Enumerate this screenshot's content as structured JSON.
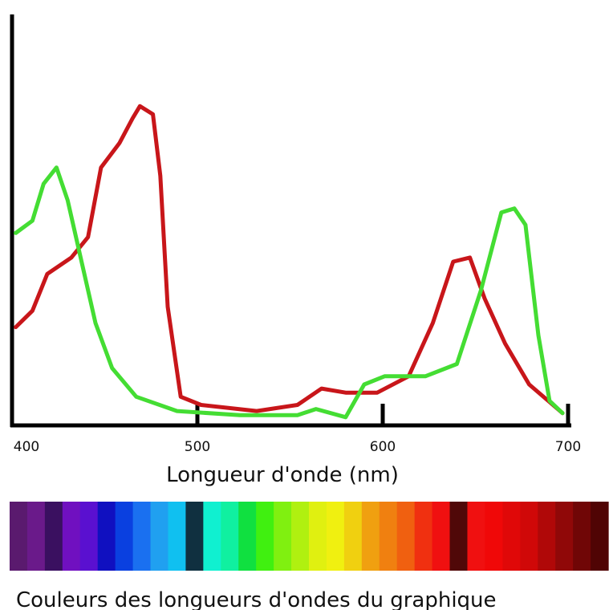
{
  "chart_data": {
    "type": "line",
    "x_label": "Longueur d'onde (nm)",
    "xlim": [
      400,
      700
    ],
    "xticks": [
      400,
      500,
      600,
      700
    ],
    "ylim": [
      0,
      100
    ],
    "series": [
      {
        "color": "#c8161a",
        "x": [
          402,
          411,
          419,
          432,
          441,
          448,
          458,
          465,
          469,
          476,
          480,
          484,
          491,
          502,
          532,
          554,
          567,
          580,
          597,
          614,
          627,
          638,
          647,
          655,
          666,
          679,
          697
        ],
        "values": [
          24,
          28,
          37,
          41,
          46,
          63,
          69,
          75,
          78,
          76,
          61,
          29,
          7,
          5,
          3.5,
          5,
          9,
          8,
          8,
          12,
          25,
          40,
          41,
          31,
          20,
          10,
          3
        ]
      },
      {
        "color": "#44dd33",
        "x": [
          402,
          411,
          417,
          424,
          430,
          437,
          445,
          454,
          467,
          489,
          523,
          554,
          564,
          580,
          590,
          601,
          623,
          640,
          653,
          664,
          671,
          677,
          684,
          690,
          697
        ],
        "values": [
          47,
          50,
          59,
          63,
          55,
          41,
          25,
          14,
          7,
          3.5,
          2.5,
          2.5,
          4,
          2,
          10,
          12,
          12,
          15,
          33,
          52,
          53,
          49,
          22,
          6,
          3
        ]
      }
    ]
  },
  "spectrum": {
    "caption": "Couleurs des longueurs d'ondes du graphique",
    "colors": [
      "#5a1a6e",
      "#6a1a8a",
      "#3a1060",
      "#7010c0",
      "#5a10d0",
      "#1010c0",
      "#0a40e0",
      "#1a70f0",
      "#20a0f0",
      "#10c0f0",
      "#103040",
      "#10f0d0",
      "#10f0a0",
      "#10e040",
      "#40f010",
      "#80f010",
      "#b0f010",
      "#e0f010",
      "#f0f010",
      "#f0d010",
      "#f0a010",
      "#f08010",
      "#f06010",
      "#f03010",
      "#f01010",
      "#500808",
      "#f01010",
      "#f00808",
      "#e00808",
      "#d00808",
      "#b00808",
      "#900808",
      "#700606",
      "#500404"
    ]
  }
}
